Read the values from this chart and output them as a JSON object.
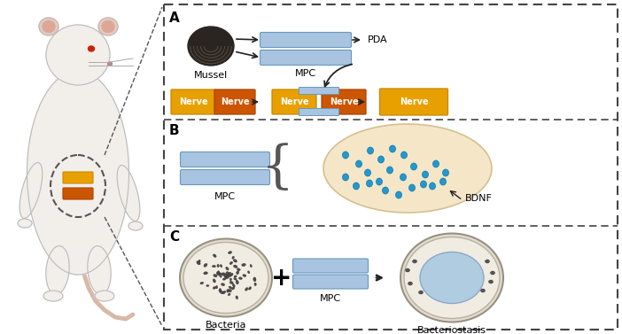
{
  "bg_color": "#ffffff",
  "mpc_color": "#a8c4e0",
  "mpc_dark": "#6699bb",
  "nerve_yellow": "#e8a000",
  "nerve_yellow_dark": "#c88800",
  "nerve_orange": "#cc5500",
  "nerve_dark": "#aa4400",
  "pda_text": "PDA",
  "mussel_text": "Mussel",
  "mpc_text": "MPC",
  "bdnf_text": "BDNF",
  "bacteria_text": "Bacteria",
  "bacteriostasis_text": "Bacteriostasis",
  "nerve_text": "Nerve",
  "panel_A": "A",
  "panel_B": "B",
  "panel_C": "C",
  "ellipse_color": "#f5e6c8",
  "ellipse_edge": "#d4c090",
  "dot_color": "#2299cc",
  "dot_edge": "#1177aa",
  "petri_outer": "#e0dcd0",
  "petri_inner": "#f0ece2",
  "bacteria_col": "#4a4a4a",
  "inhib_color": "#b0cce0",
  "inhib_edge": "#88aac8",
  "arrow_color": "#222222",
  "label_color": "#111111",
  "dashed_color": "#444444",
  "mouse_body": "#f2eeea",
  "mouse_outline": "#bbbbbb",
  "mouse_ear": "#e8c8be",
  "mouse_ear_inner": "#dba898",
  "mouse_eye": "#cc2200",
  "mouse_tail": "#d8b8a8",
  "implant_yellow": "#e8a000",
  "implant_orange": "#cc5500"
}
